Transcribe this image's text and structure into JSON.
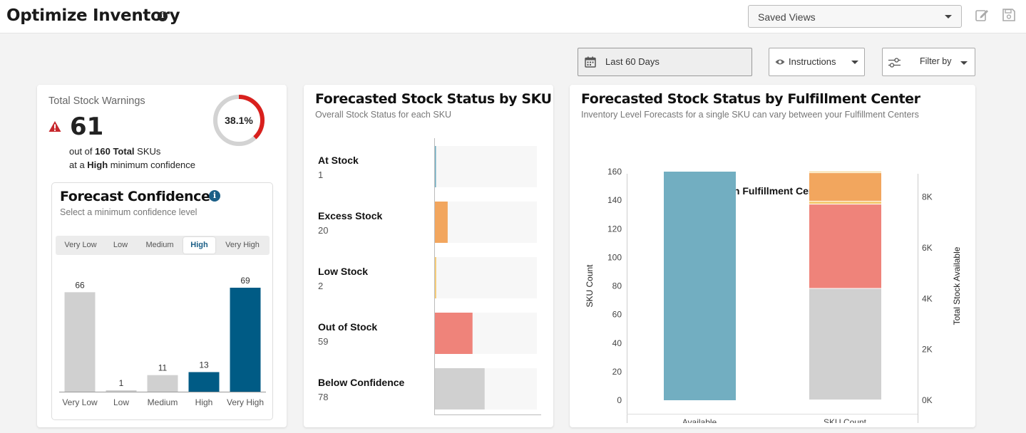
{
  "header": {
    "title": "Optimize Inventory",
    "info_icon": "info-circle-icon",
    "saved_views": "Saved Views",
    "edit_icon": "edit-icon",
    "save_icon": "save-icon"
  },
  "controls": {
    "date_range": "Last 60 Days",
    "calendar_icon": "calendar-icon",
    "instructions": "Instructions",
    "eye_icon": "eye-icon",
    "filter": "Filter by",
    "sliders_icon": "sliders-icon"
  },
  "warnings": {
    "label": "Total Stock Warnings",
    "count": "61",
    "line1_pre": "out of ",
    "line1_bold": "160 Total",
    "line1_post": " SKUs",
    "line2_pre": "at a ",
    "line2_bold": "High",
    "line2_post": " minimum confidence",
    "percent": "38.1%",
    "percent_value": 38.1,
    "ring_color": "#d9201d",
    "alert_icon": "warning-triangle-icon"
  },
  "confidence": {
    "title": "Forecast Confidence",
    "subtitle": "Select a minimum confidence level",
    "options": [
      "Very Low",
      "Low",
      "Medium",
      "High",
      "Very High"
    ],
    "selected": "High",
    "chart_data": {
      "type": "bar",
      "categories": [
        "Very Low",
        "Low",
        "Medium",
        "High",
        "Very High"
      ],
      "values": [
        66,
        1,
        11,
        13,
        69
      ],
      "colors": [
        "#d0d0d0",
        "#d0d0d0",
        "#d0d0d0",
        "#005b85",
        "#005b85"
      ]
    }
  },
  "sku_status": {
    "title": "Forecasted Stock Status by SKU",
    "subtitle": "Overall Stock Status for each SKU",
    "chart_data": {
      "type": "bar",
      "orientation": "horizontal",
      "categories": [
        "At Stock",
        "Excess Stock",
        "Low Stock",
        "Out of Stock",
        "Below Confidence"
      ],
      "values": [
        1,
        20,
        2,
        59,
        78
      ],
      "value_labels": [
        "1",
        "20",
        "2",
        "59",
        "78"
      ],
      "colors": [
        "#6fadc1",
        "#f2a65e",
        "#f5c86e",
        "#ef837a",
        "#d0d0d0"
      ],
      "xlim": [
        0,
        160
      ]
    }
  },
  "fulfillment": {
    "title": "Forecasted Stock Status by Fulfillment Center",
    "subtitle": "Inventory Level Forecasts for a single SKU can vary between your Fulfillment Centers",
    "chart_data": {
      "type": "bar",
      "title": "Main Fulfillment Center",
      "categories": [
        "Available",
        "SKU Count"
      ],
      "ylabel": "SKU Count",
      "y2label": "Total Stock Available",
      "ylim": [
        0,
        160
      ],
      "y_ticks": [
        "0",
        "20",
        "40",
        "60",
        "80",
        "100",
        "120",
        "140",
        "160"
      ],
      "y2_ticks": [
        "0K",
        "2K",
        "4K",
        "6K",
        "8K"
      ],
      "y2lim": [
        0,
        9000
      ],
      "available": {
        "value": 9000,
        "axis": "y2",
        "color": "#72aec1"
      },
      "stacked": [
        {
          "name": "Below Confidence",
          "value": 78,
          "color": "#d0d0d0"
        },
        {
          "name": "Out of Stock",
          "value": 59,
          "color": "#ef837a"
        },
        {
          "name": "Low Stock",
          "value": 2,
          "color": "#f5c86e"
        },
        {
          "name": "Excess Stock",
          "value": 20,
          "color": "#f2a65e"
        },
        {
          "name": "At Stock",
          "value": 1,
          "color": "#f5c86e"
        }
      ]
    }
  }
}
